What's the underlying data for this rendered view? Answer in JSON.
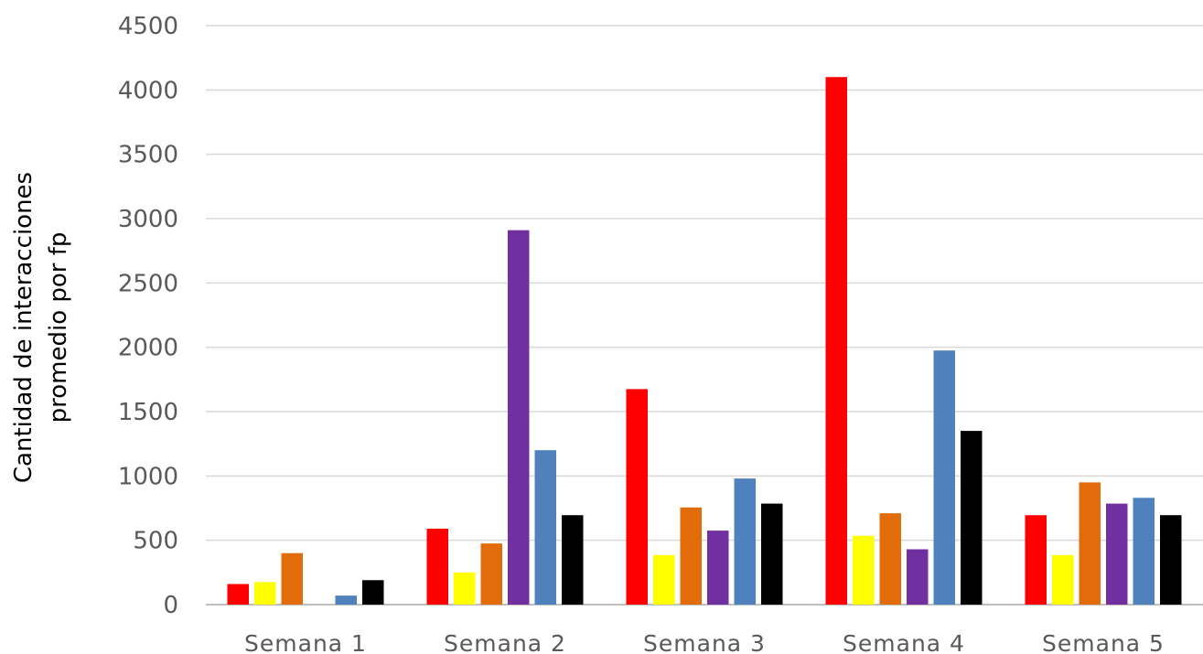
{
  "chart_data": {
    "type": "bar",
    "ylabel": "Cantidad de interacciones\npromedio por fp",
    "xlabel": "",
    "title": "",
    "categories": [
      "Semana 1",
      "Semana 2",
      "Semana 3",
      "Semana 4",
      "Semana 5"
    ],
    "ylim": [
      0,
      4500
    ],
    "yticks": [
      0,
      500,
      1000,
      1500,
      2000,
      2500,
      3000,
      3500,
      4000,
      4500
    ],
    "grid": true,
    "legend": "none",
    "series": [
      {
        "color": "#ff0000",
        "values": [
          160,
          590,
          1675,
          4100,
          695
        ]
      },
      {
        "color": "#ffff00",
        "values": [
          175,
          250,
          385,
          535,
          385
        ]
      },
      {
        "color": "#e36c0a",
        "values": [
          400,
          475,
          755,
          710,
          950
        ]
      },
      {
        "color": "#7030a0",
        "values": [
          0,
          2910,
          575,
          430,
          785
        ]
      },
      {
        "color": "#4f81bd",
        "values": [
          70,
          1200,
          980,
          1975,
          830
        ]
      },
      {
        "color": "#000000",
        "values": [
          190,
          695,
          785,
          1350,
          695
        ]
      }
    ]
  }
}
